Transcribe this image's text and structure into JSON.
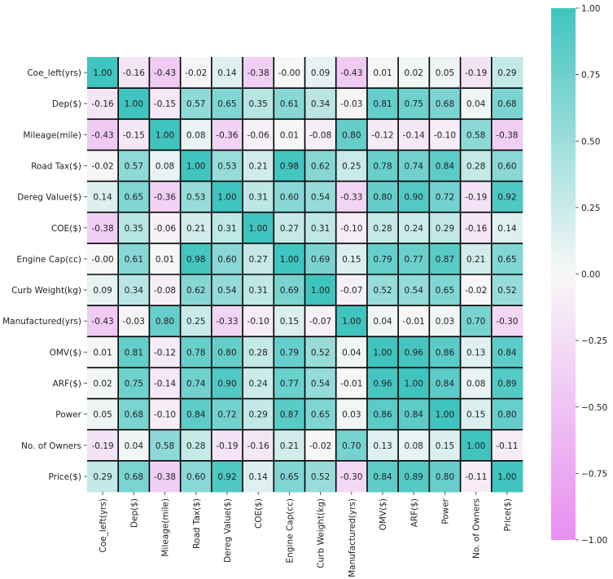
{
  "chart_data": {
    "type": "heatmap",
    "title": "",
    "xlabel": "",
    "ylabel": "",
    "row_labels": [
      "Coe_left(yrs)",
      "Dep($)",
      "Mileage(mile)",
      "Road Tax($)",
      "Dereg Value($)",
      "COE($)",
      "Engine Cap(cc)",
      "Curb Weight(kg)",
      "Manufactured(yrs)",
      "OMV($)",
      "ARF($)",
      "Power",
      "No. of Owners",
      "Price($)"
    ],
    "col_labels": [
      "Coe_left(yrs)",
      "Dep($)",
      "Mileage(mile)",
      "Road Tax($)",
      "Dereg Value($)",
      "COE($)",
      "Engine Cap(cc)",
      "Curb Weight(kg)",
      "Manufactured(yrs)",
      "OMV($)",
      "ARF($)",
      "Power",
      "No. of Owners",
      "Price($)"
    ],
    "values": [
      [
        1.0,
        -0.16,
        -0.43,
        -0.02,
        0.14,
        -0.38,
        -0.0,
        0.09,
        -0.43,
        0.01,
        0.02,
        0.05,
        -0.19,
        0.29
      ],
      [
        -0.16,
        1.0,
        -0.15,
        0.57,
        0.65,
        0.35,
        0.61,
        0.34,
        -0.03,
        0.81,
        0.75,
        0.68,
        0.04,
        0.68
      ],
      [
        -0.43,
        -0.15,
        1.0,
        0.08,
        -0.36,
        -0.06,
        0.01,
        -0.08,
        0.8,
        -0.12,
        -0.14,
        -0.1,
        0.58,
        -0.38
      ],
      [
        -0.02,
        0.57,
        0.08,
        1.0,
        0.53,
        0.21,
        0.98,
        0.62,
        0.25,
        0.78,
        0.74,
        0.84,
        0.28,
        0.6
      ],
      [
        0.14,
        0.65,
        -0.36,
        0.53,
        1.0,
        0.31,
        0.6,
        0.54,
        -0.33,
        0.8,
        0.9,
        0.72,
        -0.19,
        0.92
      ],
      [
        -0.38,
        0.35,
        -0.06,
        0.21,
        0.31,
        1.0,
        0.27,
        0.31,
        -0.1,
        0.28,
        0.24,
        0.29,
        -0.16,
        0.14
      ],
      [
        -0.0,
        0.61,
        0.01,
        0.98,
        0.6,
        0.27,
        1.0,
        0.69,
        0.15,
        0.79,
        0.77,
        0.87,
        0.21,
        0.65
      ],
      [
        0.09,
        0.34,
        -0.08,
        0.62,
        0.54,
        0.31,
        0.69,
        1.0,
        -0.07,
        0.52,
        0.54,
        0.65,
        -0.02,
        0.52
      ],
      [
        -0.43,
        -0.03,
        0.8,
        0.25,
        -0.33,
        -0.1,
        0.15,
        -0.07,
        1.0,
        0.04,
        -0.01,
        0.03,
        0.7,
        -0.3
      ],
      [
        0.01,
        0.81,
        -0.12,
        0.78,
        0.8,
        0.28,
        0.79,
        0.52,
        0.04,
        1.0,
        0.96,
        0.86,
        0.13,
        0.84
      ],
      [
        0.02,
        0.75,
        -0.14,
        0.74,
        0.9,
        0.24,
        0.77,
        0.54,
        -0.01,
        0.96,
        1.0,
        0.84,
        0.08,
        0.89
      ],
      [
        0.05,
        0.68,
        -0.1,
        0.84,
        0.72,
        0.29,
        0.87,
        0.65,
        0.03,
        0.86,
        0.84,
        1.0,
        0.15,
        0.8
      ],
      [
        -0.19,
        0.04,
        0.58,
        0.28,
        -0.19,
        -0.16,
        0.21,
        -0.02,
        0.7,
        0.13,
        0.08,
        0.15,
        1.0,
        -0.11
      ],
      [
        0.29,
        0.68,
        -0.38,
        0.6,
        0.92,
        0.14,
        0.65,
        0.52,
        -0.3,
        0.84,
        0.89,
        0.8,
        -0.11,
        1.0
      ]
    ],
    "value_format": "2 decimals",
    "vmin": -1.0,
    "vmax": 1.0,
    "colormap": {
      "negative_color": "#e88ff1",
      "center_color": "#f7f7f7",
      "positive_color": "#40c4bf"
    },
    "gridlines": "black lines between cells",
    "colorbar": {
      "placement": "right",
      "ticks": [
        1.0,
        0.75,
        0.5,
        0.25,
        0.0,
        -0.25,
        -0.5,
        -0.75,
        -1.0
      ],
      "tick_labels": [
        "1.00",
        "0.75",
        "0.50",
        "0.25",
        "0.00",
        "−0.25",
        "−0.50",
        "−0.75",
        "−1.00"
      ]
    }
  }
}
